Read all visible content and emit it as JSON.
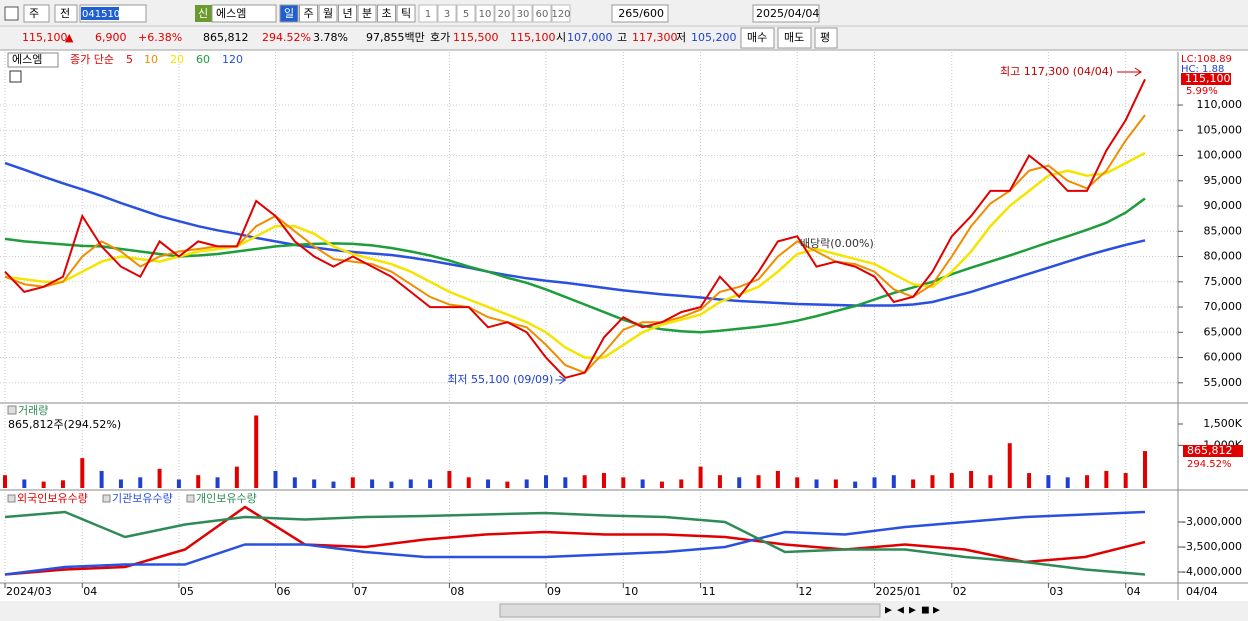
{
  "toolbar": {
    "market": "주",
    "prev": "전",
    "code": "041510",
    "new": "신",
    "name": "에스엠",
    "periods": [
      "일",
      "주",
      "월",
      "년",
      "분",
      "초",
      "틱"
    ],
    "intervals": [
      "1",
      "3",
      "5",
      "10",
      "20",
      "30",
      "60",
      "120"
    ],
    "count": "265/600",
    "date": "2025/04/04"
  },
  "quote": {
    "price": "115,100",
    "sign": "▲",
    "change": "6,900",
    "change_rate": "+6.38%",
    "volume": "865,812",
    "volume_ratio": "294.52%",
    "turnover": "3.78%",
    "amount": "97,855백만",
    "bid_ask_label": "호가",
    "ask": "115,500",
    "bid": "115,100",
    "open_label": "시",
    "open": "107,000",
    "high_label": "고",
    "high": "117,300",
    "low_label": "저",
    "low": "105,200",
    "buy": "매수",
    "sell": "매도",
    "avg": "평"
  },
  "chart_data": [
    {
      "type": "line",
      "legend_name": "에스엠",
      "legend_title": "종가 단순",
      "categories": [
        "2024/03",
        null,
        null,
        null,
        "04",
        null,
        null,
        null,
        null,
        "05",
        null,
        null,
        null,
        null,
        "06",
        null,
        null,
        null,
        "07",
        null,
        null,
        null,
        null,
        "08",
        null,
        null,
        null,
        null,
        "09",
        null,
        null,
        null,
        "10",
        null,
        null,
        null,
        "11",
        null,
        null,
        null,
        null,
        "12",
        null,
        null,
        null,
        "2025/01",
        null,
        null,
        null,
        "02",
        null,
        null,
        null,
        null,
        "03",
        null,
        null,
        null,
        "04",
        null
      ],
      "series": [
        {
          "name": "5",
          "color": "#e00000",
          "values": [
            77000,
            73000,
            74000,
            76000,
            88000,
            82000,
            78000,
            76000,
            83000,
            80000,
            83000,
            82000,
            82000,
            91000,
            88000,
            83000,
            80000,
            78000,
            80000,
            78000,
            76000,
            73000,
            70000,
            70000,
            70000,
            66000,
            67000,
            65000,
            60000,
            56000,
            57000,
            64000,
            68000,
            66000,
            67000,
            69000,
            70000,
            76000,
            72000,
            77000,
            83000,
            84000,
            78000,
            79000,
            78000,
            76000,
            71000,
            72000,
            77000,
            84000,
            88000,
            93000,
            93000,
            100000,
            97000,
            93000,
            93000,
            101000,
            107000,
            115100
          ]
        },
        {
          "name": "10",
          "color": "#f08c00",
          "values": [
            76000,
            74500,
            74000,
            75000,
            80000,
            83000,
            81000,
            78000,
            80000,
            81000,
            81500,
            82000,
            82000,
            86000,
            88000,
            85000,
            82000,
            79500,
            79000,
            78500,
            77000,
            74500,
            72000,
            70500,
            70000,
            68000,
            67000,
            66000,
            62500,
            58500,
            57000,
            61000,
            65500,
            67000,
            67000,
            68000,
            69500,
            73000,
            74000,
            75500,
            80000,
            83000,
            81000,
            79000,
            78500,
            77000,
            73500,
            72000,
            74500,
            80000,
            86000,
            90500,
            93000,
            97000,
            98000,
            95000,
            93500,
            97000,
            103000,
            108000
          ]
        },
        {
          "name": "20",
          "color": "#f5e400",
          "values": [
            76000,
            75500,
            75000,
            75000,
            77000,
            79000,
            80000,
            79500,
            79000,
            80000,
            81000,
            81500,
            82000,
            84000,
            86000,
            86000,
            84500,
            82000,
            80500,
            79500,
            78500,
            77000,
            75000,
            73000,
            71500,
            70000,
            68500,
            67000,
            65000,
            62000,
            60000,
            60000,
            62500,
            65000,
            66500,
            67500,
            68500,
            71000,
            72500,
            74000,
            77000,
            80500,
            81500,
            80500,
            79500,
            78500,
            76500,
            74500,
            74000,
            77000,
            81000,
            86000,
            90000,
            93000,
            96000,
            97000,
            96000,
            96500,
            98500,
            100500
          ]
        },
        {
          "name": "60",
          "color": "#1e9e3a",
          "values": [
            83500,
            83000,
            82700,
            82400,
            82100,
            82000,
            81500,
            81000,
            80500,
            80000,
            80200,
            80500,
            81000,
            81500,
            82000,
            82300,
            82500,
            82600,
            82500,
            82200,
            81700,
            81000,
            80200,
            79200,
            78000,
            77000,
            75800,
            74800,
            73500,
            72000,
            70500,
            69000,
            67500,
            66300,
            65600,
            65200,
            65000,
            65300,
            65700,
            66100,
            66600,
            67300,
            68200,
            69200,
            70200,
            71500,
            72800,
            73900,
            75000,
            76500,
            77800,
            79000,
            80200,
            81500,
            82800,
            84000,
            85300,
            86700,
            88700,
            91500
          ]
        },
        {
          "name": "120",
          "color": "#2a50e0",
          "values": [
            98500,
            97200,
            95800,
            94500,
            93300,
            92000,
            90600,
            89300,
            88000,
            87000,
            86000,
            85200,
            84500,
            83700,
            83000,
            82300,
            81800,
            81300,
            80900,
            80600,
            80300,
            79800,
            79200,
            78500,
            77800,
            77000,
            76300,
            75700,
            75200,
            74800,
            74300,
            73800,
            73300,
            72900,
            72500,
            72200,
            71900,
            71500,
            71200,
            71000,
            70800,
            70600,
            70500,
            70400,
            70300,
            70300,
            70300,
            70500,
            71000,
            72000,
            73000,
            74200,
            75400,
            76600,
            77800,
            79000,
            80200,
            81300,
            82300,
            83200
          ]
        }
      ],
      "ylim": [
        51200,
        120500
      ],
      "yticks": [
        {
          "value": 55000,
          "label": "55,000"
        },
        {
          "value": 60000,
          "label": "60,000"
        },
        {
          "value": 65000,
          "label": "65,000"
        },
        {
          "value": 70000,
          "label": "70,000"
        },
        {
          "value": 75000,
          "label": "75,000"
        },
        {
          "value": 80000,
          "label": "80,000"
        },
        {
          "value": 85000,
          "label": "85,000"
        },
        {
          "value": 90000,
          "label": "90,000"
        },
        {
          "value": 95000,
          "label": "95,000"
        },
        {
          "value": 100000,
          "label": "100,000"
        },
        {
          "value": 105000,
          "label": "105,000"
        },
        {
          "value": 110000,
          "label": "110,000"
        }
      ],
      "grid": true,
      "annotations": {
        "high": "최고 117,300 (04/04)",
        "low": "최저 55,100 (09/09)",
        "dividend": "배당락(0.00%)",
        "lc": "LC:108.89",
        "hc": "HC: 1.88",
        "current": "115,100",
        "current_rate": "5.99%"
      },
      "x_end_label": "04/04"
    },
    {
      "type": "bar",
      "title": "거래량",
      "subtitle": "865,812주(294.52%)",
      "values": [
        300000,
        200000,
        150000,
        180000,
        700000,
        400000,
        200000,
        250000,
        450000,
        200000,
        300000,
        250000,
        500000,
        1700000,
        400000,
        250000,
        200000,
        150000,
        250000,
        200000,
        150000,
        200000,
        200000,
        400000,
        250000,
        200000,
        150000,
        200000,
        300000,
        250000,
        300000,
        350000,
        250000,
        200000,
        150000,
        200000,
        500000,
        300000,
        250000,
        300000,
        400000,
        250000,
        200000,
        200000,
        150000,
        250000,
        300000,
        200000,
        300000,
        350000,
        400000,
        300000,
        1050000,
        350000,
        300000,
        250000,
        300000,
        400000,
        350000,
        865812
      ],
      "color_up": "#e00000",
      "color_down": "#1f3fd0",
      "ylim": [
        0,
        1945000
      ],
      "yticks": [
        {
          "value": 1000000,
          "label": "1,000K"
        },
        {
          "value": 1500000,
          "label": "1,500K"
        }
      ],
      "current": "865,812",
      "current_rate": "294.52%"
    },
    {
      "type": "line",
      "series": [
        {
          "name": "외국인보유수량",
          "color": "#e00000",
          "values": [
            -4050000,
            -3950000,
            -3900000,
            -3550000,
            -2700000,
            -3450000,
            -3500000,
            -3350000,
            -3250000,
            -3200000,
            -3250000,
            -3250000,
            -3300000,
            -3450000,
            -3550000,
            -3450000,
            -3550000,
            -3800000,
            -3700000,
            -3400000
          ]
        },
        {
          "name": "기관보유수량",
          "color": "#2a50e0",
          "values": [
            -4050000,
            -3900000,
            -3850000,
            -3850000,
            -3450000,
            -3450000,
            -3600000,
            -3700000,
            -3700000,
            -3700000,
            -3650000,
            -3600000,
            -3500000,
            -3200000,
            -3250000,
            -3100000,
            -3000000,
            -2900000,
            -2850000,
            -2800000
          ]
        },
        {
          "name": "개인보유수량",
          "color": "#2e8b57",
          "values": [
            -2900000,
            -2800000,
            -3300000,
            -3050000,
            -2900000,
            -2950000,
            -2900000,
            -2880000,
            -2850000,
            -2820000,
            -2870000,
            -2900000,
            -3000000,
            -3600000,
            -3550000,
            -3550000,
            -3700000,
            -3800000,
            -3950000,
            -4050000
          ]
        }
      ],
      "ylim": [
        -4200000,
        -2400000
      ],
      "yticks": [
        {
          "value": -3000000,
          "label": "-3,000,000"
        },
        {
          "value": -3500000,
          "label": "-3,500,000"
        },
        {
          "value": -4000000,
          "label": "-4,000,000"
        }
      ]
    }
  ]
}
